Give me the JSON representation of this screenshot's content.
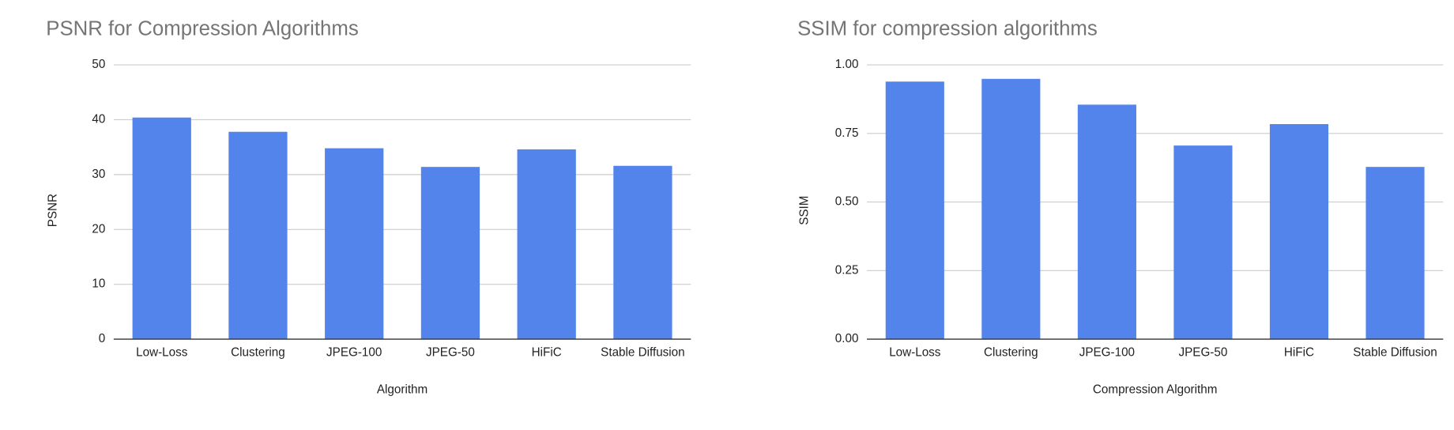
{
  "chart_data": [
    {
      "type": "bar",
      "title": "PSNR for Compression Algorithms",
      "x_label": "Algorithm",
      "y_label": "PSNR",
      "categories": [
        "Low-Loss",
        "Clustering",
        "JPEG-100",
        "JPEG-50",
        "HiFiC",
        "Stable Diffusion"
      ],
      "values": [
        40.4,
        37.8,
        34.8,
        31.4,
        34.6,
        31.6
      ],
      "color": "#5384ec",
      "ylim": [
        0,
        50
      ],
      "yticks": [
        0,
        10,
        20,
        30,
        40,
        50
      ],
      "grid": true
    },
    {
      "type": "bar",
      "title": "SSIM for compression algorithms",
      "x_label": "Compression Algorithm",
      "y_label": "SSIM",
      "categories": [
        "Low-Loss",
        "Clustering",
        "JPEG-100",
        "JPEG-50",
        "HiFiC",
        "Stable Diffusion"
      ],
      "values": [
        0.939,
        0.949,
        0.855,
        0.706,
        0.784,
        0.628
      ],
      "color": "#5384ec",
      "ylim": [
        0,
        1
      ],
      "yticks": [
        {
          "value": 0,
          "label": "0.00"
        },
        {
          "value": 0.25,
          "label": "0.25"
        },
        {
          "value": 0.5,
          "label": "0.50"
        },
        {
          "value": 0.75,
          "label": "0.75"
        },
        {
          "value": 1,
          "label": "1.00"
        }
      ],
      "grid": true
    }
  ]
}
